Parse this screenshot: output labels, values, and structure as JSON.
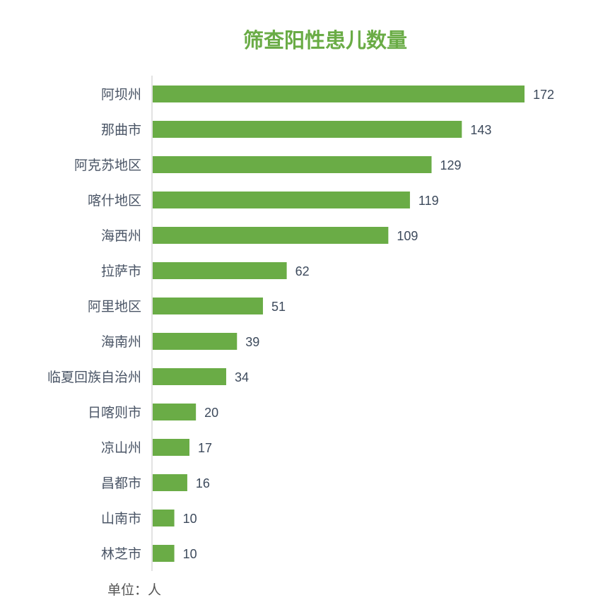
{
  "chart_data": {
    "type": "bar",
    "orientation": "horizontal",
    "title": "筛查阳性患儿数量",
    "categories": [
      "阿坝州",
      "那曲市",
      "阿克苏地区",
      "喀什地区",
      "海西州",
      "拉萨市",
      "阿里地区",
      "海南州",
      "临夏回族自治州",
      "日喀则市",
      "凉山州",
      "昌都市",
      "山南市",
      "林芝市"
    ],
    "values": [
      172,
      143,
      129,
      119,
      109,
      62,
      51,
      39,
      34,
      20,
      17,
      16,
      10,
      10
    ],
    "xlim": [
      0,
      172
    ],
    "grid": false,
    "data_labels": true,
    "unit_label": "单位：人",
    "colors": {
      "bar": "#6aac46",
      "title": "#6aac46",
      "label": "#3d4a5c",
      "axis": "#d9d9d9"
    }
  }
}
